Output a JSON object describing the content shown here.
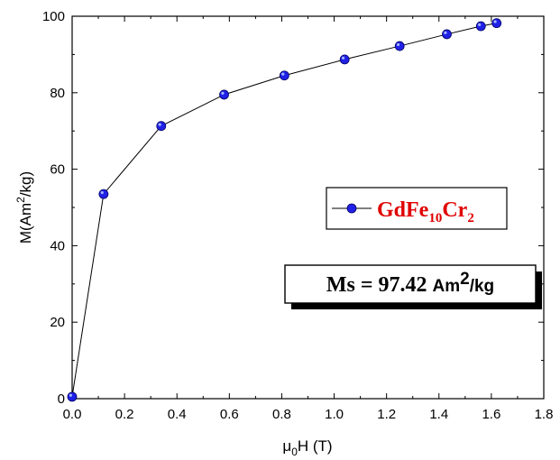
{
  "chart_data": {
    "type": "line",
    "xlabel": {
      "main": "μ",
      "sub": "0",
      "rest": "H (T)"
    },
    "ylabel": {
      "main": "M(Am",
      "sup": "2",
      "rest": "/kg)"
    },
    "xlim": [
      0.0,
      1.8
    ],
    "ylim": [
      0,
      100
    ],
    "xticks": [
      0.0,
      0.2,
      0.4,
      0.6,
      0.8,
      1.0,
      1.2,
      1.4,
      1.6,
      1.8
    ],
    "xtick_labels": [
      "0.0",
      "0.2",
      "0.4",
      "0.6",
      "0.8",
      "1.0",
      "1.2",
      "1.4",
      "1.6",
      "1.8"
    ],
    "yticks": [
      0,
      20,
      40,
      60,
      80,
      100
    ],
    "ytick_labels": [
      "0",
      "20",
      "40",
      "60",
      "80",
      "100"
    ],
    "grid": false,
    "series": [
      {
        "name": "GdFe10Cr2",
        "name_parts": {
          "a": "GdFe",
          "b": "10",
          "c": "Cr",
          "d": "2"
        },
        "color": "#0000ff",
        "line_color": "#000000",
        "x": [
          0.0,
          0.12,
          0.34,
          0.58,
          0.81,
          1.04,
          1.25,
          1.43,
          1.56,
          1.62
        ],
        "y": [
          0.5,
          53.5,
          71.3,
          79.5,
          84.5,
          88.7,
          92.2,
          95.3,
          97.4,
          98.2
        ]
      }
    ],
    "legend_position": "center-right",
    "annotation": {
      "part1": "Ms = 97.42 ",
      "part2": "Am",
      "sup": "2",
      "part3": "/kg"
    }
  }
}
